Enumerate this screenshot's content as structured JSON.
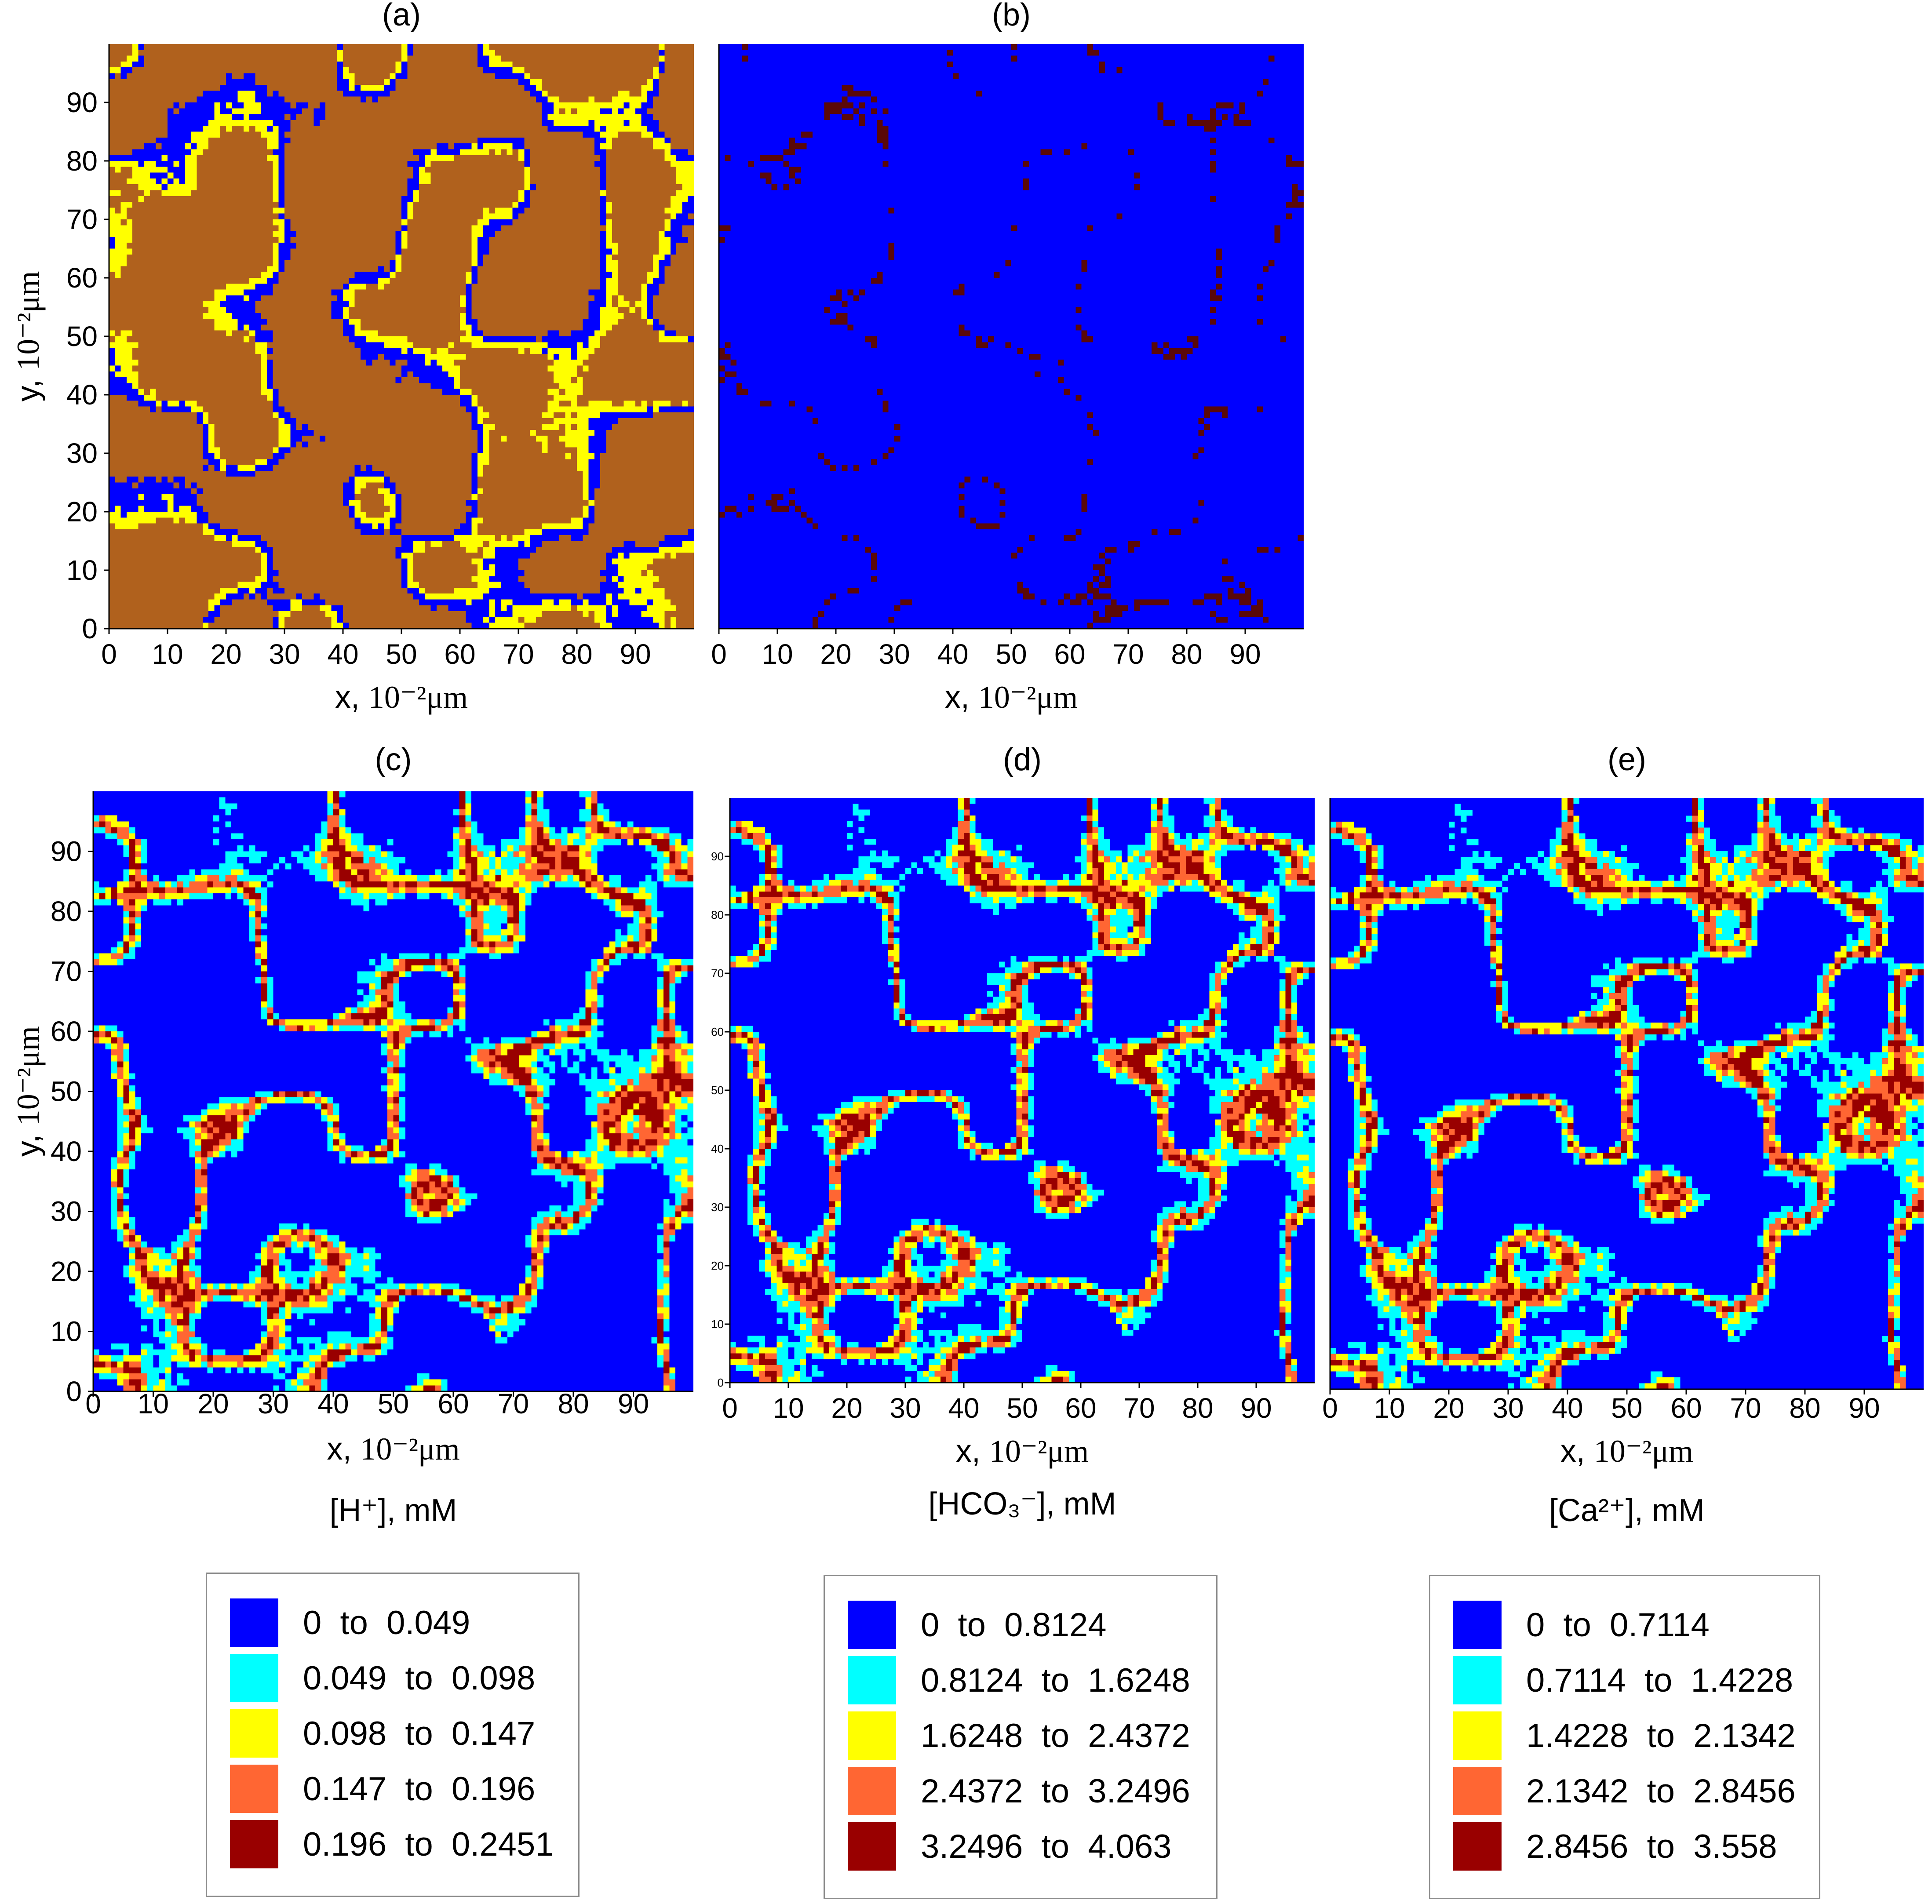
{
  "chart_data": [
    {
      "panel": "(a)",
      "type": "heatmap",
      "xlabel_prefix": "x, ",
      "ylabel_prefix": "y, ",
      "axis_unit": "10⁻²μm",
      "xticks": [
        0,
        10,
        20,
        30,
        40,
        50,
        60,
        70,
        80,
        90
      ],
      "yticks": [
        0,
        10,
        20,
        30,
        40,
        50,
        60,
        70,
        80,
        90
      ],
      "xlim": [
        0,
        100
      ],
      "ylim": [
        0,
        100
      ],
      "grid_cells": 100,
      "palette": [
        "#0000ff",
        "#ffff00",
        "#b0611d"
      ],
      "palette_meaning": "blue = pore, yellow = dissolving solid, brown = solid matrix"
    },
    {
      "panel": "(b)",
      "type": "heatmap",
      "xlabel_prefix": "x, ",
      "axis_unit": "10⁻²μm",
      "xticks": [
        0,
        10,
        20,
        30,
        40,
        50,
        60,
        70,
        80,
        90
      ],
      "xlim": [
        0,
        100
      ],
      "ylim": [
        0,
        100
      ],
      "grid_cells": 100,
      "palette": [
        "#0000ff",
        "#5a0808"
      ]
    },
    {
      "panel": "(c)",
      "type": "heatmap",
      "xlabel_prefix": "x, ",
      "ylabel_prefix": "y, ",
      "axis_unit": "10⁻²μm",
      "quantity_label": "[H⁺], mM",
      "xticks": [
        0,
        10,
        20,
        30,
        40,
        50,
        60,
        70,
        80,
        90
      ],
      "yticks": [
        0,
        10,
        20,
        30,
        40,
        50,
        60,
        70,
        80,
        90
      ],
      "xlim": [
        0,
        100
      ],
      "ylim": [
        0,
        100
      ],
      "grid_cells": 100,
      "legend": [
        {
          "range": "0  to  0.049",
          "color": "#0000ff"
        },
        {
          "range": "0.049  to  0.098",
          "color": "#00ffff"
        },
        {
          "range": "0.098  to  0.147",
          "color": "#ffff00"
        },
        {
          "range": "0.147  to  0.196",
          "color": "#ff6633"
        },
        {
          "range": "0.196  to  0.2451",
          "color": "#990000"
        }
      ]
    },
    {
      "panel": "(d)",
      "type": "heatmap",
      "xlabel_prefix": "x, ",
      "axis_unit": "10⁻²μm",
      "quantity_label": "[HCO₃⁻], mM",
      "xticks": [
        0,
        10,
        20,
        30,
        40,
        50,
        60,
        70,
        80,
        90
      ],
      "yticks": [
        0,
        10,
        20,
        30,
        40,
        50,
        60,
        70,
        80,
        90
      ],
      "xlim": [
        0,
        100
      ],
      "ylim": [
        0,
        100
      ],
      "grid_cells": 100,
      "legend": [
        {
          "range": "0  to  0.8124",
          "color": "#0000ff"
        },
        {
          "range": "0.8124  to  1.6248",
          "color": "#00ffff"
        },
        {
          "range": "1.6248  to  2.4372",
          "color": "#ffff00"
        },
        {
          "range": "2.4372  to  3.2496",
          "color": "#ff6633"
        },
        {
          "range": "3.2496  to  4.063",
          "color": "#990000"
        }
      ]
    },
    {
      "panel": "(e)",
      "type": "heatmap",
      "xlabel_prefix": "x, ",
      "axis_unit": "10⁻²μm",
      "quantity_label": "[Ca²⁺], mM",
      "xticks": [
        0,
        10,
        20,
        30,
        40,
        50,
        60,
        70,
        80,
        90
      ],
      "xlim": [
        0,
        100
      ],
      "ylim": [
        0,
        100
      ],
      "grid_cells": 100,
      "legend": [
        {
          "range": "0  to  0.7114",
          "color": "#0000ff"
        },
        {
          "range": "0.7114  to  1.4228",
          "color": "#00ffff"
        },
        {
          "range": "1.4228  to  2.1342",
          "color": "#ffff00"
        },
        {
          "range": "2.1342  to  2.8456",
          "color": "#ff6633"
        },
        {
          "range": "2.8456  to  3.558",
          "color": "#990000"
        }
      ]
    }
  ]
}
